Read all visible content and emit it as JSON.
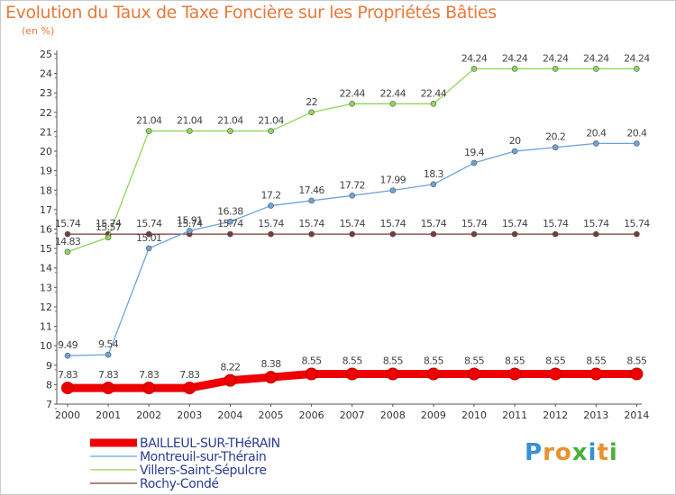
{
  "title": "Evolution du Taux de Taxe Foncière sur les Propriétés Bâties",
  "subtitle": "(en %)",
  "logo": {
    "letters": [
      "P",
      "r",
      "o",
      "x",
      "i",
      "t",
      "i"
    ],
    "colors": [
      "#3a8fd6",
      "#e8922e",
      "#e8922e",
      "#4caf3c",
      "#3a8fd6",
      "#e8922e",
      "#4caf3c"
    ]
  },
  "chart_data": {
    "type": "line",
    "title": "Evolution du Taux de Taxe Foncière sur les Propriétés Bâties",
    "ylabel": "(en %)",
    "xlabel": "",
    "x": [
      "2000",
      "2001",
      "2002",
      "2003",
      "2004",
      "2005",
      "2006",
      "2007",
      "2008",
      "2009",
      "2010",
      "2011",
      "2012",
      "2013",
      "2014"
    ],
    "ylim": [
      7,
      25
    ],
    "yticks": [
      "7",
      "8",
      "9",
      "10",
      "11",
      "12",
      "13",
      "14",
      "15",
      "16",
      "17",
      "18",
      "19",
      "20",
      "21",
      "22",
      "23",
      "24",
      "25"
    ],
    "grid": false,
    "legend_position": "bottom-left",
    "series": [
      {
        "name": "BAILLEUL-SUR-THéRAIN",
        "color": "#ee0000",
        "thick": true,
        "values": [
          7.83,
          7.83,
          7.83,
          7.83,
          8.22,
          8.38,
          8.55,
          8.55,
          8.55,
          8.55,
          8.55,
          8.55,
          8.55,
          8.55,
          8.55
        ],
        "labels": [
          "7.83",
          "7.83",
          "7.83",
          "7.83",
          "8.22",
          "8.38",
          "8.55",
          "8.55",
          "8.55",
          "8.55",
          "8.55",
          "8.55",
          "8.55",
          "8.55",
          "8.55"
        ]
      },
      {
        "name": "Montreuil-sur-Thérain",
        "color": "#6fa3d8",
        "thick": false,
        "values": [
          9.49,
          9.54,
          15.01,
          15.91,
          16.38,
          17.2,
          17.46,
          17.72,
          17.99,
          18.3,
          19.4,
          20,
          20.2,
          20.4,
          20.4
        ],
        "labels": [
          "9.49",
          "9.54",
          "15.01",
          "15.91",
          "16.38",
          "17.2",
          "17.46",
          "17.72",
          "17.99",
          "18.3",
          "19.4",
          "20",
          "20.2",
          "20.4",
          "20.4"
        ]
      },
      {
        "name": "Villers-Saint-Sépulcre",
        "color": "#8fd65a",
        "thick": false,
        "values": [
          14.83,
          15.57,
          21.04,
          21.04,
          21.04,
          21.04,
          22,
          22.44,
          22.44,
          22.44,
          24.24,
          24.24,
          24.24,
          24.24,
          24.24
        ],
        "labels": [
          "14.83",
          "15.57",
          "21.04",
          "21.04",
          "21.04",
          "21.04",
          "22",
          "22.44",
          "22.44",
          "22.44",
          "24.24",
          "24.24",
          "24.24",
          "24.24",
          "24.24"
        ]
      },
      {
        "name": "Rochy-Condé",
        "color": "#7a3a3a",
        "thick": false,
        "values": [
          15.74,
          15.74,
          15.74,
          15.74,
          15.74,
          15.74,
          15.74,
          15.74,
          15.74,
          15.74,
          15.74,
          15.74,
          15.74,
          15.74,
          15.74
        ],
        "labels": [
          "15.74",
          "15.74",
          "15.74",
          "15.74",
          "15.74",
          "15.74",
          "15.74",
          "15.74",
          "15.74",
          "15.74",
          "15.74",
          "15.74",
          "15.74",
          "15.74",
          "15.74"
        ]
      }
    ]
  }
}
